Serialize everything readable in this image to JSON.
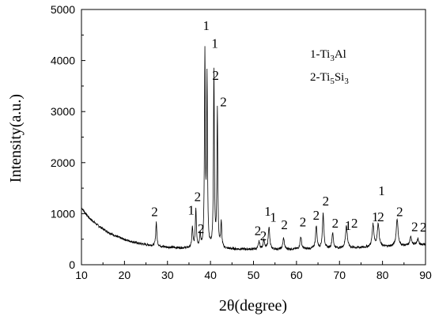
{
  "chart_data": {
    "type": "line",
    "xlabel": "2θ(degree)",
    "ylabel": "Intensity(a.u.)",
    "xlim": [
      10,
      90
    ],
    "ylim": [
      0,
      5000
    ],
    "x_ticks": [
      10,
      20,
      30,
      40,
      50,
      60,
      70,
      80,
      90
    ],
    "y_ticks": [
      0,
      1000,
      2000,
      3000,
      4000,
      5000
    ],
    "grid": false,
    "legend": {
      "placement": "top-right",
      "entries": [
        {
          "prefix": "1-Ti",
          "sub1": "3",
          "suffix": "Al",
          "sub2": ""
        },
        {
          "prefix": "2-Ti",
          "sub1": "5",
          "suffix": "Si",
          "sub2": "3"
        }
      ]
    },
    "series": [
      {
        "color": "#000000",
        "background": [
          [
            10,
            1120
          ],
          [
            11,
            1000
          ],
          [
            12,
            900
          ],
          [
            13,
            830
          ],
          [
            14,
            760
          ],
          [
            15,
            700
          ],
          [
            16,
            650
          ],
          [
            17,
            600
          ],
          [
            18,
            560
          ],
          [
            19,
            525
          ],
          [
            20,
            495
          ],
          [
            21,
            470
          ],
          [
            22,
            445
          ],
          [
            23,
            425
          ],
          [
            24,
            408
          ],
          [
            25,
            393
          ],
          [
            26,
            380
          ],
          [
            27,
            370
          ],
          [
            28,
            360
          ],
          [
            29,
            350
          ],
          [
            30,
            342
          ],
          [
            32,
            332
          ],
          [
            34,
            325
          ],
          [
            36,
            320
          ],
          [
            38,
            316
          ],
          [
            40,
            312
          ],
          [
            42,
            310
          ],
          [
            45,
            305
          ],
          [
            50,
            300
          ],
          [
            55,
            300
          ],
          [
            60,
            305
          ],
          [
            65,
            310
          ],
          [
            70,
            320
          ],
          [
            75,
            335
          ],
          [
            80,
            350
          ],
          [
            85,
            370
          ],
          [
            88,
            385
          ],
          [
            90,
            395
          ]
        ],
        "peaks": [
          {
            "x": 27.4,
            "y": 840,
            "w": 0.15
          },
          {
            "x": 35.8,
            "y": 720,
            "w": 0.15
          },
          {
            "x": 36.6,
            "y": 1080,
            "w": 0.15
          },
          {
            "x": 37.6,
            "y": 560,
            "w": 0.15
          },
          {
            "x": 38.7,
            "y": 4060,
            "w": 0.12
          },
          {
            "x": 39.2,
            "y": 3580,
            "w": 0.12
          },
          {
            "x": 40.8,
            "y": 3760,
            "w": 0.12
          },
          {
            "x": 41.6,
            "y": 3000,
            "w": 0.12
          },
          {
            "x": 42.5,
            "y": 800,
            "w": 0.15
          },
          {
            "x": 51.3,
            "y": 450,
            "w": 0.2
          },
          {
            "x": 52.4,
            "y": 480,
            "w": 0.2
          },
          {
            "x": 53.6,
            "y": 740,
            "w": 0.2
          },
          {
            "x": 57.0,
            "y": 520,
            "w": 0.2
          },
          {
            "x": 61.0,
            "y": 550,
            "w": 0.2
          },
          {
            "x": 64.6,
            "y": 760,
            "w": 0.2
          },
          {
            "x": 66.2,
            "y": 1000,
            "w": 0.2
          },
          {
            "x": 68.4,
            "y": 620,
            "w": 0.2
          },
          {
            "x": 71.6,
            "y": 760,
            "w": 0.25
          },
          {
            "x": 77.8,
            "y": 780,
            "w": 0.25
          },
          {
            "x": 79.0,
            "y": 800,
            "w": 0.25
          },
          {
            "x": 83.4,
            "y": 900,
            "w": 0.25
          },
          {
            "x": 86.6,
            "y": 540,
            "w": 0.25
          },
          {
            "x": 88.2,
            "y": 500,
            "w": 0.25
          }
        ]
      }
    ],
    "annotations": [
      {
        "text": "2",
        "x": 27.0,
        "y": 950
      },
      {
        "text": "1",
        "x": 35.5,
        "y": 980
      },
      {
        "text": "2",
        "x": 37.0,
        "y": 1250
      },
      {
        "text": "2",
        "x": 37.8,
        "y": 620
      },
      {
        "text": "1",
        "x": 39.0,
        "y": 4600
      },
      {
        "text": "1",
        "x": 41.0,
        "y": 4250
      },
      {
        "text": "2",
        "x": 41.2,
        "y": 3620
      },
      {
        "text": "2",
        "x": 43.0,
        "y": 3100
      },
      {
        "text": "1",
        "x": 53.3,
        "y": 960
      },
      {
        "text": "1",
        "x": 54.6,
        "y": 840
      },
      {
        "text": "2",
        "x": 51.0,
        "y": 580
      },
      {
        "text": "2",
        "x": 52.3,
        "y": 480
      },
      {
        "text": "2",
        "x": 57.2,
        "y": 700
      },
      {
        "text": "2",
        "x": 61.5,
        "y": 750
      },
      {
        "text": "2",
        "x": 64.6,
        "y": 880
      },
      {
        "text": "2",
        "x": 66.8,
        "y": 1160
      },
      {
        "text": "2",
        "x": 69.0,
        "y": 730
      },
      {
        "text": "1",
        "x": 72.0,
        "y": 680
      },
      {
        "text": "2",
        "x": 73.5,
        "y": 730
      },
      {
        "text": "1",
        "x": 79.8,
        "y": 1360
      },
      {
        "text": "1",
        "x": 78.3,
        "y": 850
      },
      {
        "text": "2",
        "x": 79.6,
        "y": 850
      },
      {
        "text": "2",
        "x": 84.0,
        "y": 950
      },
      {
        "text": "2",
        "x": 87.5,
        "y": 660
      },
      {
        "text": "2",
        "x": 89.5,
        "y": 650
      }
    ]
  }
}
